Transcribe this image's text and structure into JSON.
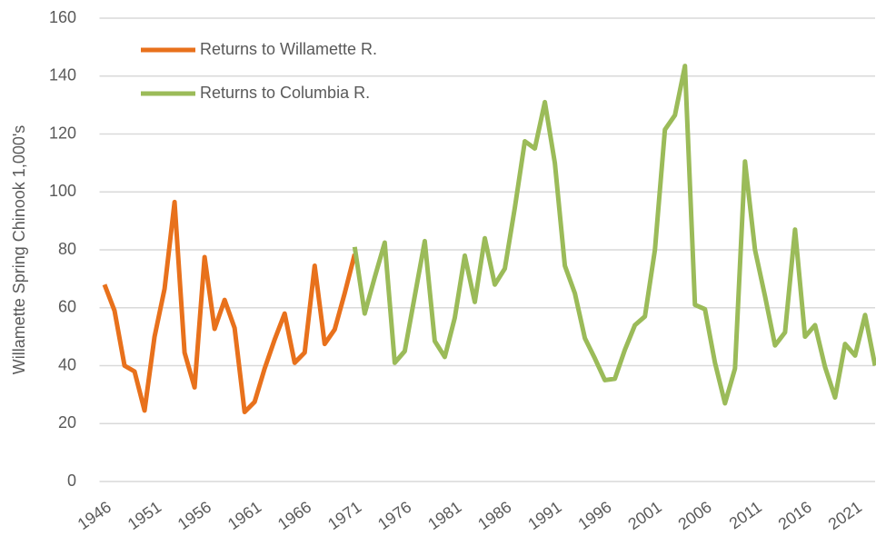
{
  "chart_data": {
    "type": "line",
    "y_label": "Willamette Spring Chinook 1,000's",
    "xlim": [
      1945.5,
      2023
    ],
    "ylim": [
      0,
      160
    ],
    "xticks": [
      1946,
      1951,
      1956,
      1961,
      1966,
      1971,
      1976,
      1981,
      1986,
      1991,
      1996,
      2001,
      2006,
      2011,
      2016,
      2021
    ],
    "yticks": [
      0,
      20,
      40,
      60,
      80,
      100,
      120,
      140,
      160
    ],
    "grid": true,
    "legend": "upper left",
    "series": [
      {
        "name": "Returns to Willamette R.",
        "color": "#e8711c",
        "x": [
          1946,
          1947,
          1948,
          1949,
          1950,
          1951,
          1952,
          1953,
          1954,
          1955,
          1956,
          1957,
          1958,
          1959,
          1960,
          1961,
          1962,
          1963,
          1964,
          1965,
          1966,
          1967,
          1968,
          1969,
          1970,
          1971
        ],
        "values": [
          68,
          59,
          40,
          38,
          24.5,
          50,
          66.5,
          96.5,
          44.5,
          32.5,
          77.5,
          52.7,
          62.7,
          53,
          24,
          27.5,
          39,
          49,
          58,
          41,
          44.5,
          74.5,
          47.5,
          52.5,
          65,
          78.5
        ]
      },
      {
        "name": "Returns to Columbia R.",
        "color": "#9bbb59",
        "x": [
          1971,
          1972,
          1973,
          1974,
          1975,
          1976,
          1977,
          1978,
          1979,
          1980,
          1981,
          1982,
          1983,
          1984,
          1985,
          1986,
          1987,
          1988,
          1989,
          1990,
          1991,
          1992,
          1993,
          1994,
          1995,
          1996,
          1997,
          1998,
          1999,
          2000,
          2001,
          2002,
          2003,
          2004,
          2005,
          2006,
          2007,
          2008,
          2009,
          2010,
          2011,
          2012,
          2013,
          2014,
          2015,
          2016,
          2017,
          2018,
          2019,
          2020,
          2021,
          2022,
          2023
        ],
        "values": [
          81,
          58,
          70.5,
          82.5,
          41,
          45,
          64,
          83,
          48.5,
          43,
          56.5,
          78,
          62,
          84,
          68,
          73.5,
          94.5,
          117.5,
          115,
          131,
          110,
          74.5,
          65,
          49.5,
          42.5,
          35,
          35.5,
          45.5,
          54,
          57,
          80,
          121.5,
          126.5,
          143.5,
          61,
          59.5,
          41,
          27,
          39,
          110.5,
          80,
          64,
          47,
          51.5,
          87,
          50,
          54,
          39.5,
          29,
          47.5,
          43.5,
          57.5,
          40
        ]
      }
    ]
  }
}
